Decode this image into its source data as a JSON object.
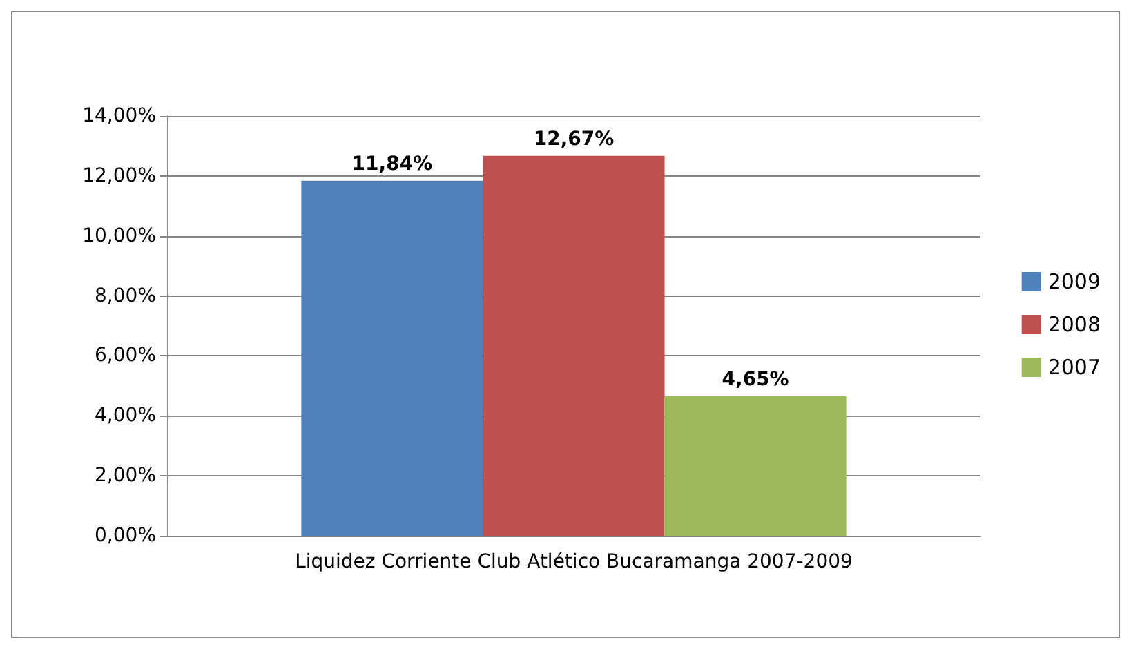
{
  "chart_data": {
    "type": "bar",
    "categories": [
      "Liquidez Corriente Club Atlético Bucaramanga 2007-2009"
    ],
    "series": [
      {
        "name": "2009",
        "color": "#4f81bd",
        "values": [
          11.84
        ],
        "value_labels": [
          "11,84%"
        ]
      },
      {
        "name": "2008",
        "color": "#c0504d",
        "values": [
          12.67
        ],
        "value_labels": [
          "12,67%"
        ]
      },
      {
        "name": "2007",
        "color": "#9bbb59",
        "values": [
          4.65
        ],
        "value_labels": [
          "4,65%"
        ]
      }
    ],
    "ylim": [
      0,
      14
    ],
    "yticks": [
      {
        "value": 0,
        "label": "0,00%"
      },
      {
        "value": 2,
        "label": "2,00%"
      },
      {
        "value": 4,
        "label": "4,00%"
      },
      {
        "value": 6,
        "label": "6,00%"
      },
      {
        "value": 8,
        "label": "8,00%"
      },
      {
        "value": 10,
        "label": "10,00%"
      },
      {
        "value": 12,
        "label": "12,00%"
      },
      {
        "value": 14,
        "label": "14,00%"
      }
    ],
    "grid": "y",
    "legend": "right"
  }
}
